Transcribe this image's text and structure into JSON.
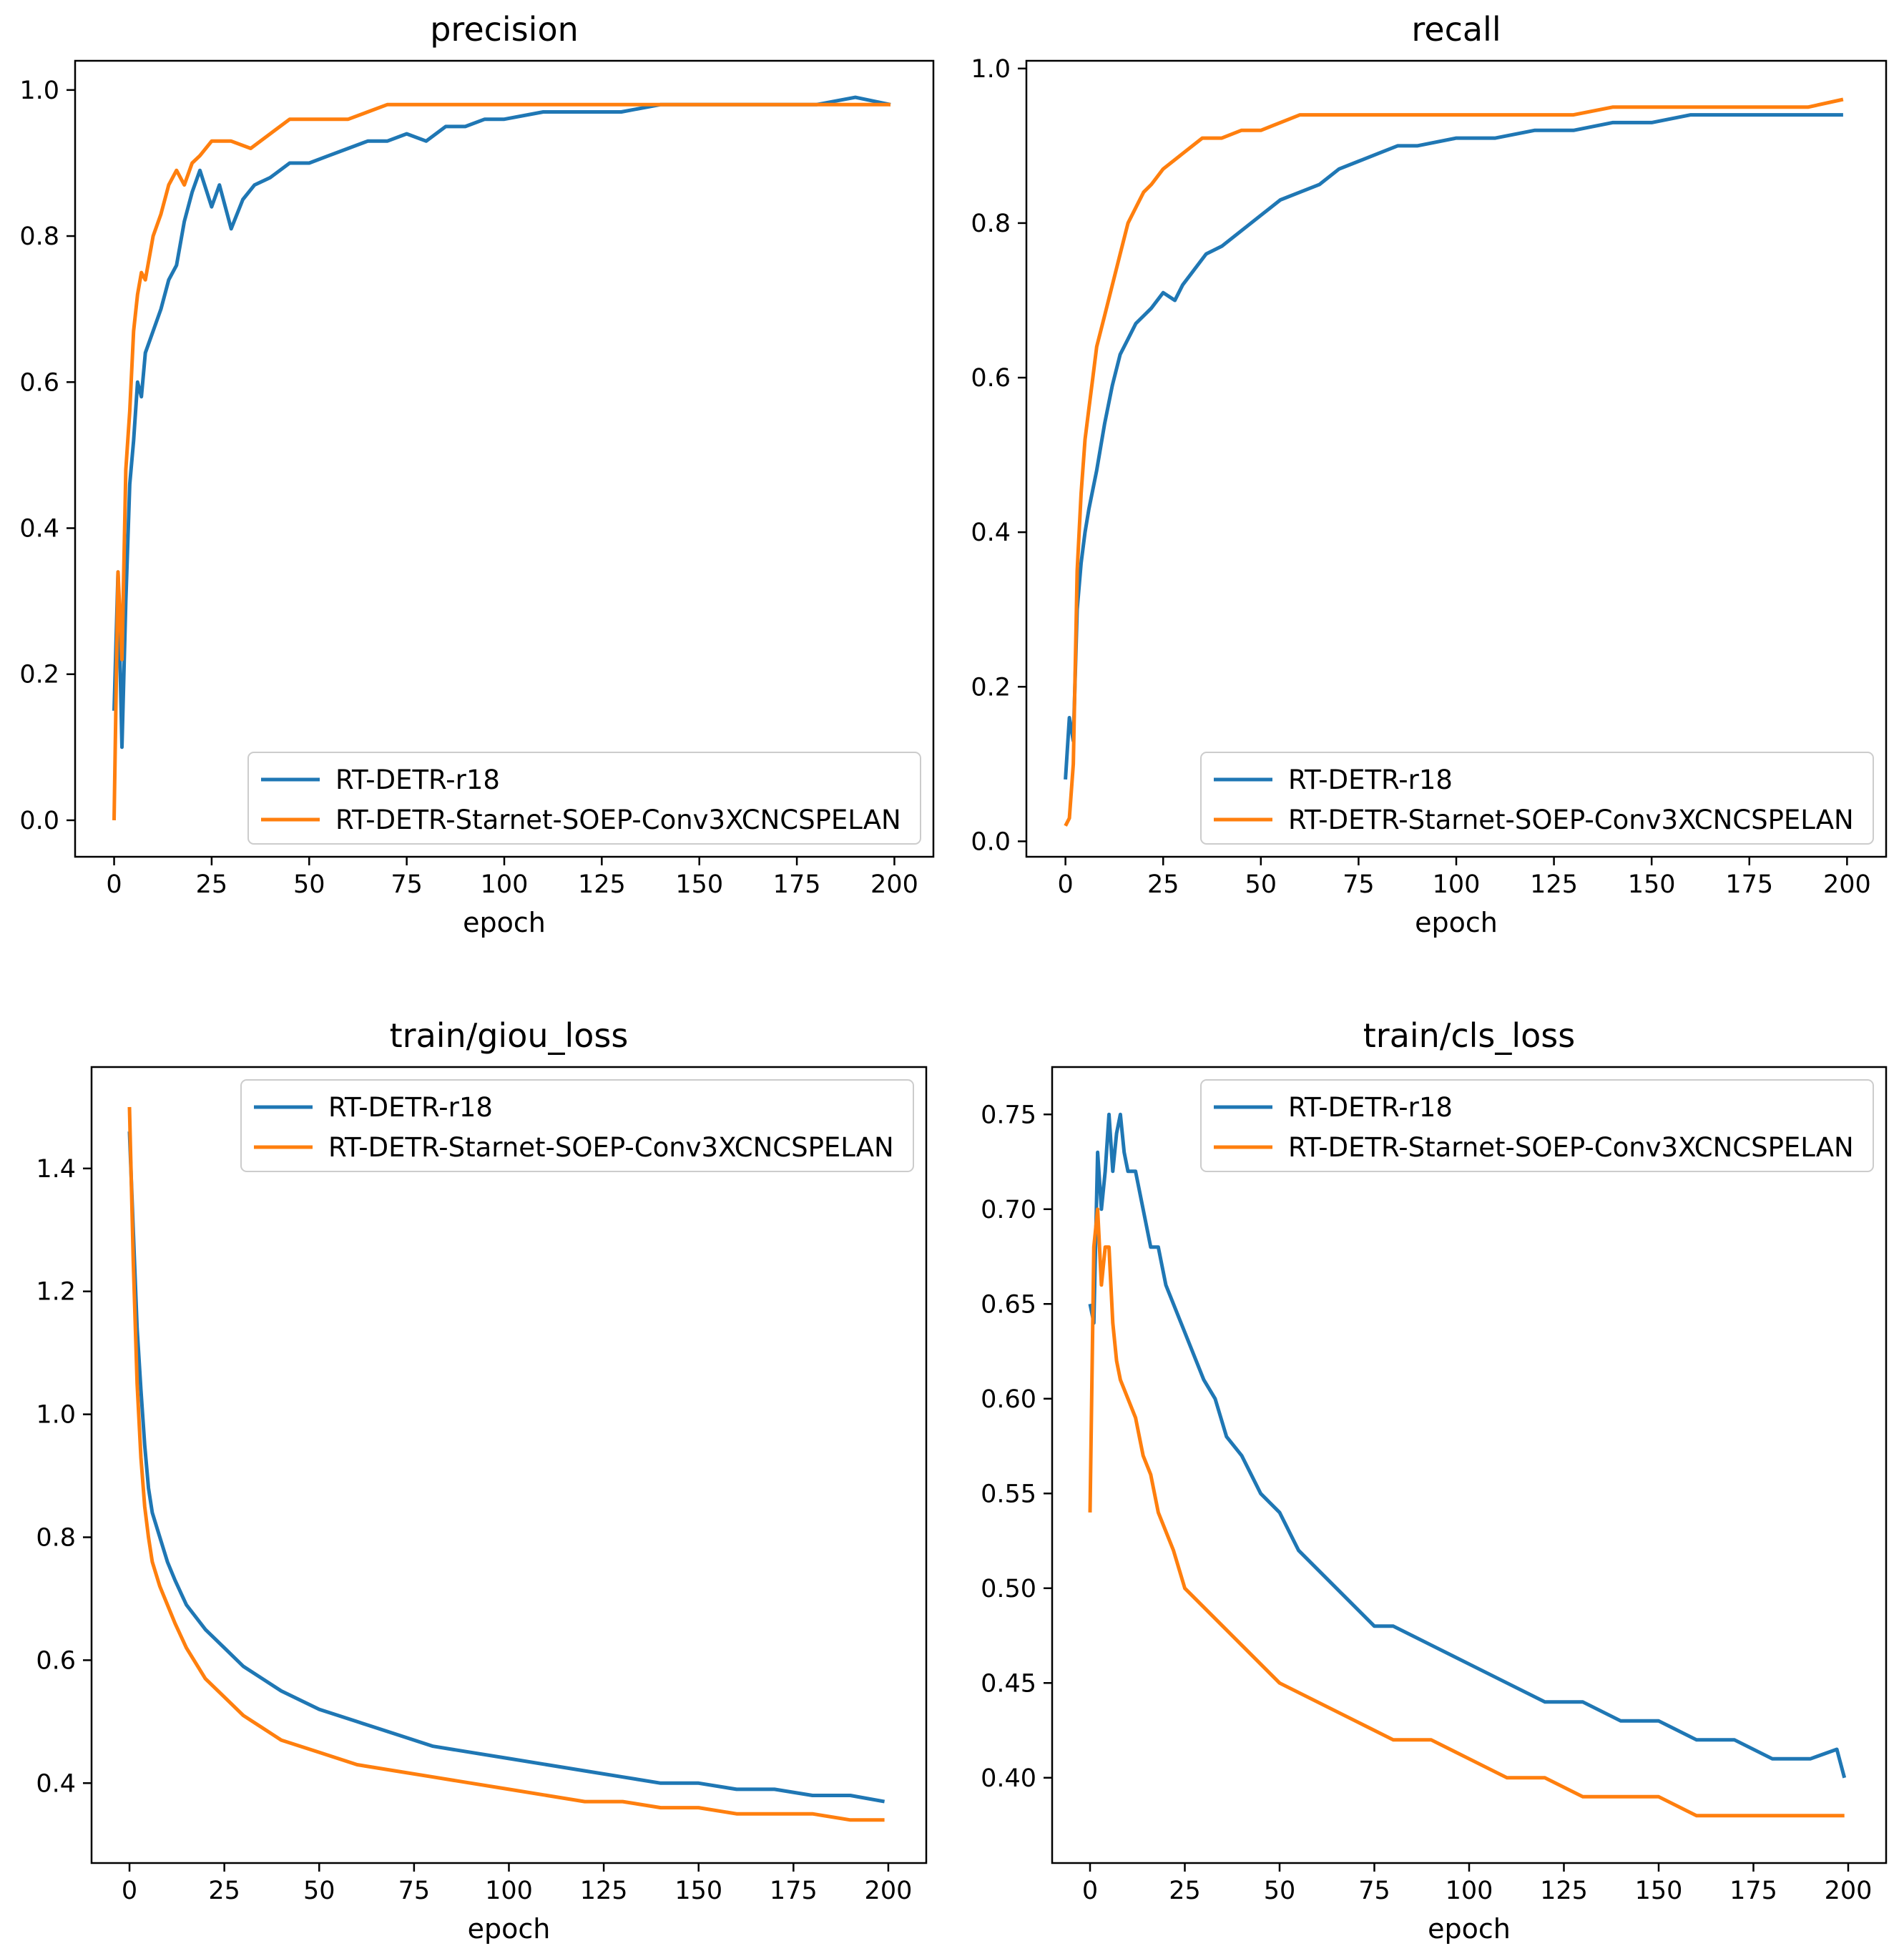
{
  "colors": {
    "series_a": "#1f77b4",
    "series_b": "#ff7f0e",
    "axis": "#000000",
    "legend_frame": "#cccccc"
  },
  "chart_data": [
    {
      "type": "line",
      "title": "precision",
      "xlabel": "epoch",
      "ylabel": "",
      "xlim": [
        -10,
        210
      ],
      "ylim": [
        -0.05,
        1.04
      ],
      "xticks": [
        0,
        25,
        50,
        75,
        100,
        125,
        150,
        175,
        200
      ],
      "yticks": [
        0.0,
        0.2,
        0.4,
        0.6,
        0.8,
        1.0
      ],
      "ytick_labels": [
        "0.0",
        "0.2",
        "0.4",
        "0.6",
        "0.8",
        "1.0"
      ],
      "legend_loc": "lower-right",
      "series": [
        {
          "name": "RT-DETR-r18",
          "color": "#1f77b4",
          "x": [
            0,
            1,
            2,
            3,
            4,
            5,
            6,
            7,
            8,
            10,
            12,
            14,
            16,
            18,
            20,
            22,
            25,
            27,
            30,
            33,
            36,
            40,
            45,
            50,
            55,
            60,
            65,
            70,
            75,
            80,
            85,
            90,
            95,
            100,
            110,
            120,
            130,
            140,
            150,
            160,
            170,
            180,
            190,
            199
          ],
          "values": [
            0.15,
            0.34,
            0.1,
            0.3,
            0.46,
            0.52,
            0.6,
            0.58,
            0.64,
            0.67,
            0.7,
            0.74,
            0.76,
            0.82,
            0.86,
            0.89,
            0.84,
            0.87,
            0.81,
            0.85,
            0.87,
            0.88,
            0.9,
            0.9,
            0.91,
            0.92,
            0.93,
            0.93,
            0.94,
            0.93,
            0.95,
            0.95,
            0.96,
            0.96,
            0.97,
            0.97,
            0.97,
            0.98,
            0.98,
            0.98,
            0.98,
            0.98,
            0.99,
            0.98
          ]
        },
        {
          "name": "RT-DETR-Starnet-SOEP-Conv3XCNCSPELAN",
          "color": "#ff7f0e",
          "x": [
            0,
            1,
            2,
            3,
            4,
            5,
            6,
            7,
            8,
            10,
            12,
            14,
            16,
            18,
            20,
            22,
            25,
            30,
            35,
            40,
            45,
            50,
            55,
            60,
            65,
            70,
            75,
            80,
            90,
            100,
            110,
            120,
            130,
            140,
            150,
            160,
            170,
            180,
            190,
            199
          ],
          "values": [
            0.0,
            0.34,
            0.22,
            0.48,
            0.56,
            0.67,
            0.72,
            0.75,
            0.74,
            0.8,
            0.83,
            0.87,
            0.89,
            0.87,
            0.9,
            0.91,
            0.93,
            0.93,
            0.92,
            0.94,
            0.96,
            0.96,
            0.96,
            0.96,
            0.97,
            0.98,
            0.98,
            0.98,
            0.98,
            0.98,
            0.98,
            0.98,
            0.98,
            0.98,
            0.98,
            0.98,
            0.98,
            0.98,
            0.98,
            0.98
          ]
        }
      ]
    },
    {
      "type": "line",
      "title": "recall",
      "xlabel": "epoch",
      "ylabel": "",
      "xlim": [
        -10,
        210
      ],
      "ylim": [
        -0.02,
        1.01
      ],
      "xticks": [
        0,
        25,
        50,
        75,
        100,
        125,
        150,
        175,
        200
      ],
      "yticks": [
        0.0,
        0.2,
        0.4,
        0.6,
        0.8,
        1.0
      ],
      "ytick_labels": [
        "0.0",
        "0.2",
        "0.4",
        "0.6",
        "0.8",
        "1.0"
      ],
      "legend_loc": "lower-right",
      "series": [
        {
          "name": "RT-DETR-r18",
          "color": "#1f77b4",
          "x": [
            0,
            1,
            2,
            3,
            4,
            5,
            6,
            8,
            10,
            12,
            14,
            16,
            18,
            20,
            22,
            25,
            28,
            30,
            33,
            36,
            40,
            45,
            50,
            55,
            60,
            65,
            70,
            75,
            80,
            85,
            90,
            100,
            110,
            120,
            130,
            140,
            150,
            160,
            170,
            180,
            190,
            199
          ],
          "values": [
            0.08,
            0.16,
            0.13,
            0.3,
            0.36,
            0.4,
            0.43,
            0.48,
            0.54,
            0.59,
            0.63,
            0.65,
            0.67,
            0.68,
            0.69,
            0.71,
            0.7,
            0.72,
            0.74,
            0.76,
            0.77,
            0.79,
            0.81,
            0.83,
            0.84,
            0.85,
            0.87,
            0.88,
            0.89,
            0.9,
            0.9,
            0.91,
            0.91,
            0.92,
            0.92,
            0.93,
            0.93,
            0.94,
            0.94,
            0.94,
            0.94,
            0.94
          ]
        },
        {
          "name": "RT-DETR-Starnet-SOEP-Conv3XCNCSPELAN",
          "color": "#ff7f0e",
          "x": [
            0,
            1,
            2,
            3,
            4,
            5,
            6,
            7,
            8,
            10,
            12,
            14,
            16,
            18,
            20,
            22,
            25,
            30,
            35,
            40,
            45,
            50,
            55,
            60,
            70,
            80,
            90,
            100,
            110,
            120,
            130,
            140,
            150,
            160,
            170,
            180,
            190,
            199
          ],
          "values": [
            0.02,
            0.03,
            0.1,
            0.35,
            0.45,
            0.52,
            0.56,
            0.6,
            0.64,
            0.68,
            0.72,
            0.76,
            0.8,
            0.82,
            0.84,
            0.85,
            0.87,
            0.89,
            0.91,
            0.91,
            0.92,
            0.92,
            0.93,
            0.94,
            0.94,
            0.94,
            0.94,
            0.94,
            0.94,
            0.94,
            0.94,
            0.95,
            0.95,
            0.95,
            0.95,
            0.95,
            0.95,
            0.96
          ]
        }
      ]
    },
    {
      "type": "line",
      "title": "train/giou_loss",
      "xlabel": "epoch",
      "ylabel": "",
      "xlim": [
        -10,
        210
      ],
      "ylim": [
        0.27,
        1.565
      ],
      "xticks": [
        0,
        25,
        50,
        75,
        100,
        125,
        150,
        175,
        200
      ],
      "yticks": [
        0.4,
        0.6,
        0.8,
        1.0,
        1.2,
        1.4
      ],
      "ytick_labels": [
        "0.4",
        "0.6",
        "0.8",
        "1.0",
        "1.2",
        "1.4"
      ],
      "legend_loc": "upper-right",
      "series": [
        {
          "name": "RT-DETR-r18",
          "color": "#1f77b4",
          "x": [
            0,
            1,
            2,
            3,
            4,
            5,
            6,
            8,
            10,
            12,
            15,
            20,
            25,
            30,
            35,
            40,
            50,
            60,
            70,
            80,
            90,
            100,
            110,
            120,
            130,
            140,
            150,
            160,
            170,
            180,
            190,
            199
          ],
          "values": [
            1.46,
            1.3,
            1.14,
            1.04,
            0.95,
            0.88,
            0.84,
            0.8,
            0.76,
            0.73,
            0.69,
            0.65,
            0.62,
            0.59,
            0.57,
            0.55,
            0.52,
            0.5,
            0.48,
            0.46,
            0.45,
            0.44,
            0.43,
            0.42,
            0.41,
            0.4,
            0.4,
            0.39,
            0.39,
            0.38,
            0.38,
            0.37
          ]
        },
        {
          "name": "RT-DETR-Starnet-SOEP-Conv3XCNCSPELAN",
          "color": "#ff7f0e",
          "x": [
            0,
            1,
            2,
            3,
            4,
            5,
            6,
            8,
            10,
            12,
            15,
            20,
            25,
            30,
            35,
            40,
            50,
            60,
            70,
            80,
            90,
            100,
            110,
            120,
            130,
            140,
            150,
            160,
            170,
            180,
            190,
            199
          ],
          "values": [
            1.5,
            1.25,
            1.05,
            0.93,
            0.85,
            0.8,
            0.76,
            0.72,
            0.69,
            0.66,
            0.62,
            0.57,
            0.54,
            0.51,
            0.49,
            0.47,
            0.45,
            0.43,
            0.42,
            0.41,
            0.4,
            0.39,
            0.38,
            0.37,
            0.37,
            0.36,
            0.36,
            0.35,
            0.35,
            0.35,
            0.34,
            0.34
          ]
        }
      ]
    },
    {
      "type": "line",
      "title": "train/cls_loss",
      "xlabel": "epoch",
      "ylabel": "",
      "xlim": [
        -10,
        210
      ],
      "ylim": [
        0.355,
        0.775
      ],
      "xticks": [
        0,
        25,
        50,
        75,
        100,
        125,
        150,
        175,
        200
      ],
      "yticks": [
        0.4,
        0.45,
        0.5,
        0.55,
        0.6,
        0.65,
        0.7,
        0.75
      ],
      "ytick_labels": [
        "0.40",
        "0.45",
        "0.50",
        "0.55",
        "0.60",
        "0.65",
        "0.70",
        "0.75"
      ],
      "legend_loc": "upper-right",
      "series": [
        {
          "name": "RT-DETR-r18",
          "color": "#1f77b4",
          "x": [
            0,
            1,
            2,
            3,
            4,
            5,
            6,
            7,
            8,
            9,
            10,
            12,
            14,
            16,
            18,
            20,
            22,
            24,
            26,
            28,
            30,
            33,
            36,
            40,
            45,
            50,
            55,
            60,
            65,
            70,
            75,
            80,
            90,
            100,
            110,
            120,
            130,
            140,
            150,
            160,
            170,
            180,
            190,
            197,
            199
          ],
          "values": [
            0.65,
            0.64,
            0.73,
            0.7,
            0.72,
            0.75,
            0.72,
            0.74,
            0.75,
            0.73,
            0.72,
            0.72,
            0.7,
            0.68,
            0.68,
            0.66,
            0.65,
            0.64,
            0.63,
            0.62,
            0.61,
            0.6,
            0.58,
            0.57,
            0.55,
            0.54,
            0.52,
            0.51,
            0.5,
            0.49,
            0.48,
            0.48,
            0.47,
            0.46,
            0.45,
            0.44,
            0.44,
            0.43,
            0.43,
            0.42,
            0.42,
            0.41,
            0.41,
            0.415,
            0.4
          ]
        },
        {
          "name": "RT-DETR-Starnet-SOEP-Conv3XCNCSPELAN",
          "color": "#ff7f0e",
          "x": [
            0,
            1,
            2,
            3,
            4,
            5,
            6,
            7,
            8,
            10,
            12,
            14,
            16,
            18,
            20,
            22,
            25,
            30,
            35,
            40,
            45,
            50,
            60,
            70,
            80,
            90,
            100,
            110,
            120,
            130,
            140,
            150,
            160,
            170,
            180,
            190,
            199
          ],
          "values": [
            0.54,
            0.68,
            0.7,
            0.66,
            0.68,
            0.68,
            0.64,
            0.62,
            0.61,
            0.6,
            0.59,
            0.57,
            0.56,
            0.54,
            0.53,
            0.52,
            0.5,
            0.49,
            0.48,
            0.47,
            0.46,
            0.45,
            0.44,
            0.43,
            0.42,
            0.42,
            0.41,
            0.4,
            0.4,
            0.39,
            0.39,
            0.39,
            0.38,
            0.38,
            0.38,
            0.38,
            0.38
          ]
        }
      ]
    }
  ]
}
